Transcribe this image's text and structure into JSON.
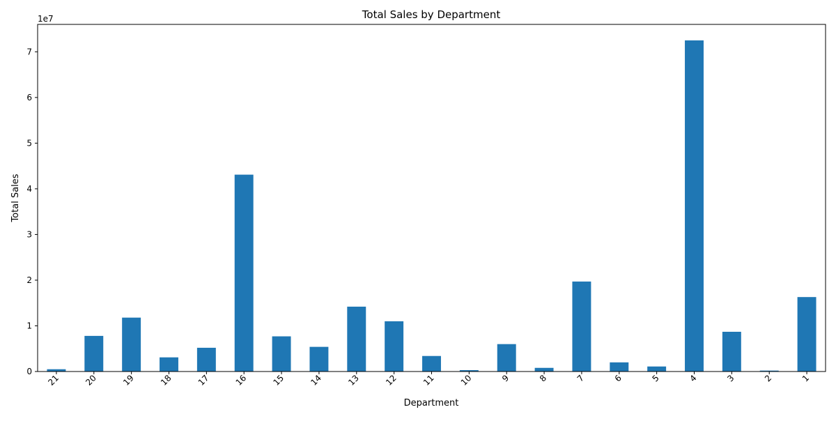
{
  "chart_data": {
    "type": "bar",
    "title": "Total Sales by Department",
    "xlabel": "Department",
    "ylabel": "Total Sales",
    "y_offset_label": "1e7",
    "y_scale": 10000000,
    "ylim": [
      0,
      76000000
    ],
    "yticks": [
      0,
      10000000,
      20000000,
      30000000,
      40000000,
      50000000,
      60000000,
      70000000
    ],
    "ytick_labels": [
      "0",
      "1",
      "2",
      "3",
      "4",
      "5",
      "6",
      "7"
    ],
    "tick_rotation_deg": 45,
    "grid": false,
    "legend": "none",
    "bar_color": "#1f77b4",
    "categories": [
      "21",
      "20",
      "19",
      "18",
      "17",
      "16",
      "15",
      "14",
      "13",
      "12",
      "11",
      "10",
      "9",
      "8",
      "7",
      "6",
      "5",
      "4",
      "3",
      "2",
      "1"
    ],
    "values": [
      500000,
      7800000,
      11800000,
      3100000,
      5200000,
      43100000,
      7700000,
      5400000,
      14200000,
      11000000,
      3400000,
      300000,
      6000000,
      800000,
      19700000,
      2000000,
      1100000,
      72500000,
      8700000,
      200000,
      16300000
    ]
  }
}
